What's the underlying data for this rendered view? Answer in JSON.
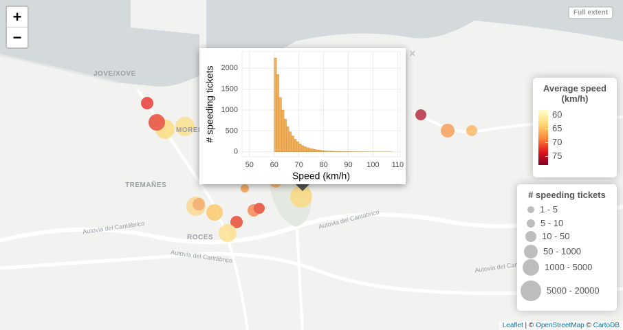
{
  "controls": {
    "zoom_in": "+",
    "zoom_out": "−",
    "full_extent": "Full extent",
    "close": "×"
  },
  "labels": {
    "jove": "JOVE/XOVE",
    "tremanes": "TREMAÑES",
    "roces": "ROCES",
    "moreda": "MORED",
    "road_1": "Autovia del Cantábrico",
    "road_2": "Autovia del Cantábrico",
    "road_3": "Autovia del Cantábrico",
    "road_4": "Autovia del Cantábrico"
  },
  "legend_speed": {
    "title": "Average speed (km/h)",
    "ticks": [
      60,
      65,
      70,
      75
    ],
    "lim": [
      58.25,
      78.25
    ],
    "colors": [
      "#ffffcc",
      "#fed976",
      "#fd8d3c",
      "#e31a1c",
      "#800026"
    ]
  },
  "legend_tickets": {
    "title": "# speeding tickets",
    "classes": [
      "1 - 5",
      "5 - 10",
      "10 - 50",
      "50 - 1000",
      "1000 - 5000",
      "5000 - 20000"
    ]
  },
  "attribution": {
    "leaflet": "Leaflet",
    "sep": " | © ",
    "osm": "OpenStreetMap",
    "sep2": " © ",
    "carto": "CartoDB"
  },
  "chart_data": {
    "type": "histogram",
    "xlabel": "Speed (km/h)",
    "ylabel": "# speeding tickets",
    "bins": [
      60,
      61,
      62,
      63,
      64,
      65,
      66,
      67,
      68,
      69,
      70,
      71,
      72,
      73,
      74,
      75,
      76,
      77,
      78,
      79,
      80,
      81,
      82,
      83,
      84,
      85,
      86,
      87,
      88,
      89,
      90,
      91,
      92,
      93,
      94,
      95,
      96,
      97,
      98,
      99,
      100,
      101,
      102,
      103,
      104,
      105,
      106,
      107,
      108
    ],
    "values": [
      2250,
      1850,
      1300,
      1000,
      780,
      600,
      480,
      380,
      300,
      240,
      190,
      150,
      120,
      100,
      80,
      70,
      55,
      45,
      40,
      30,
      25,
      20,
      18,
      15,
      12,
      10,
      8,
      7,
      6,
      5,
      5,
      4,
      4,
      3,
      3,
      2,
      2,
      2,
      2,
      1,
      1,
      1,
      1,
      1,
      1,
      1,
      1,
      1
    ],
    "color": "#f2ad57",
    "xlim": [
      47,
      111
    ],
    "ylim": [
      -120,
      2400
    ],
    "xticks": [
      50,
      60,
      70,
      80,
      90,
      100,
      110
    ],
    "yticks": [
      0,
      500,
      1000,
      1500,
      2000
    ],
    "grid": true
  }
}
